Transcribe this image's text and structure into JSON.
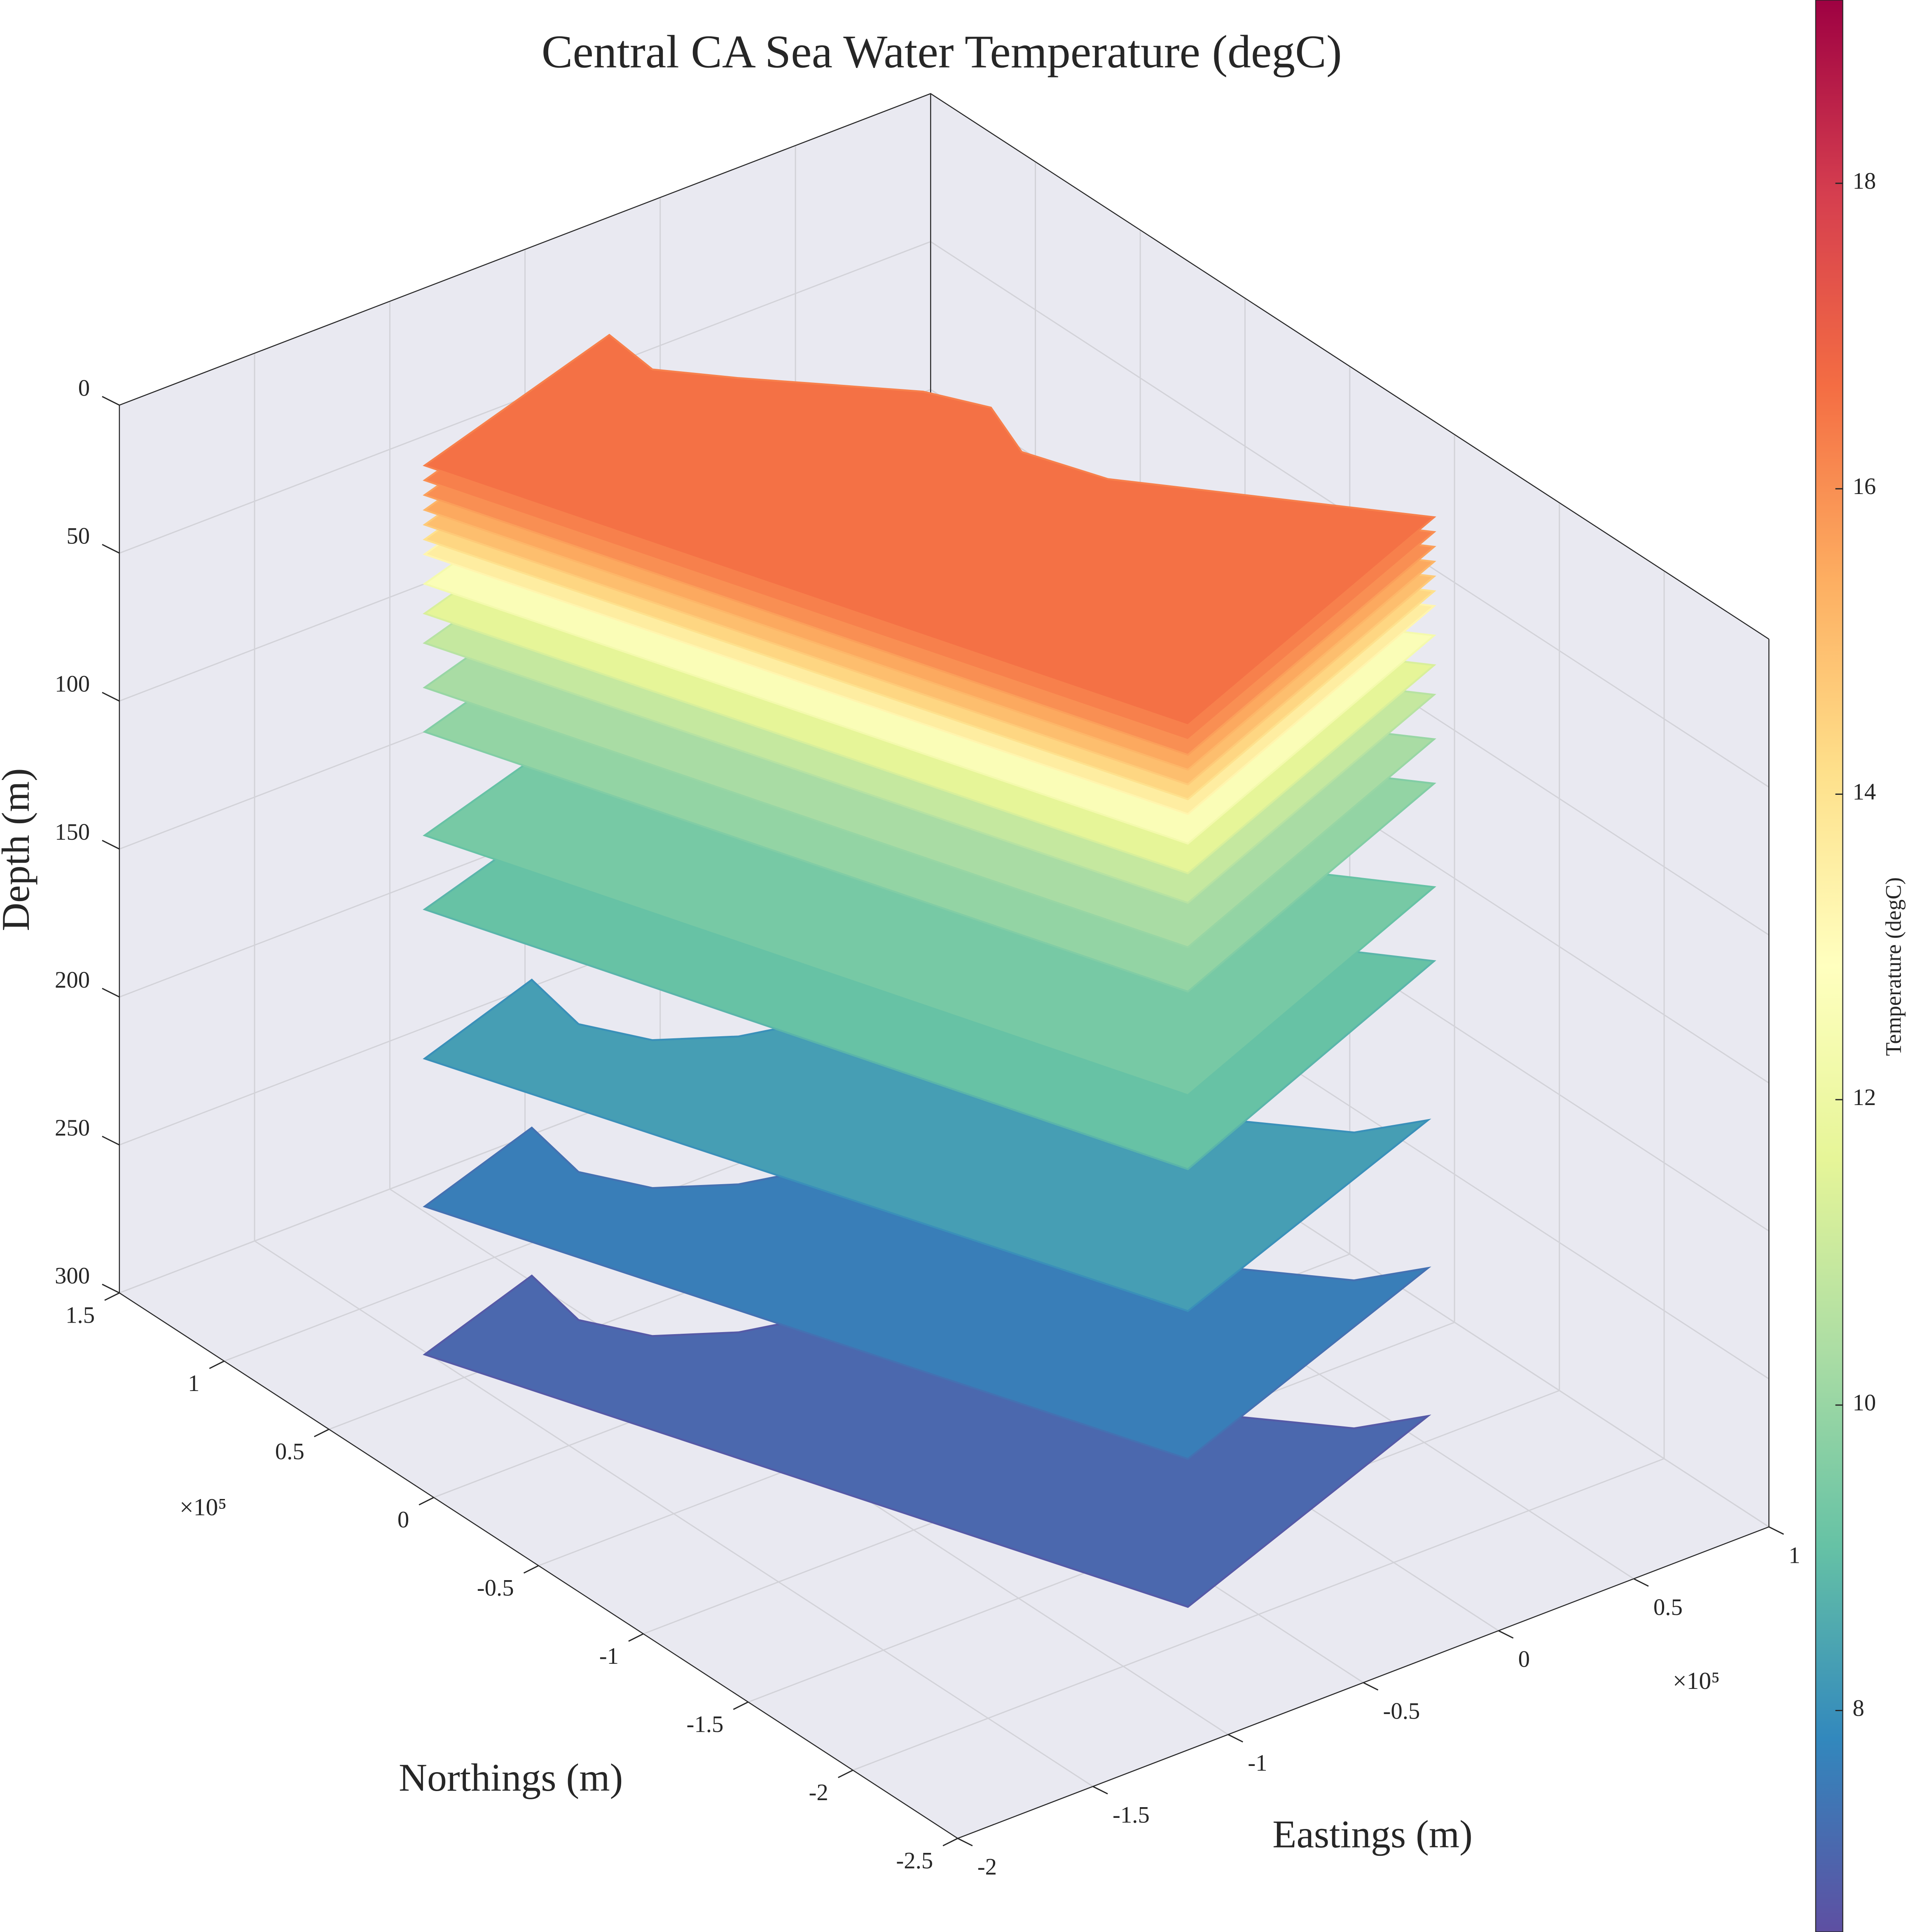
{
  "chart_data": {
    "type": "slices",
    "title": "Central CA Sea Water Temperature (degC)",
    "zlabel": "Depth (m)",
    "xlabel": "Northings (m)",
    "ylabel": "Eastings (m)",
    "colorbar_label": "Temperature (degC)",
    "x_exponent": "×10⁵",
    "y_exponent": "×10⁵",
    "depths": [
      0,
      5,
      10,
      15,
      20,
      25,
      30,
      40,
      50,
      60,
      75,
      90,
      125,
      150,
      200,
      250,
      300
    ],
    "values": [
      16.6,
      16.3,
      16,
      15.5,
      15,
      14.4,
      13.6,
      12.6,
      11.6,
      10.9,
      10.3,
      9.9,
      9.4,
      9.1,
      8.3,
      7.6,
      7.1
    ],
    "xlim": [
      -2.5,
      1.5
    ],
    "xticks": [
      -2.5,
      -2,
      -1.5,
      -1,
      -0.5,
      0,
      0.5,
      1,
      1.5
    ],
    "ylim": [
      -2,
      1
    ],
    "yticks": [
      -2,
      -1.5,
      -1,
      -0.5,
      0,
      0.5,
      1
    ],
    "zlim": [
      0,
      300
    ],
    "zticks": [
      0,
      50,
      100,
      150,
      200,
      250,
      300
    ],
    "z_reversed": true,
    "clim": [
      6.55,
      19.2
    ],
    "cticks": [
      8,
      10,
      12,
      14,
      16,
      18
    ],
    "colormap": [
      "#5e4fa2",
      "#3288bd",
      "#66c2a5",
      "#abdda4",
      "#e6f598",
      "#ffffbf",
      "#fee08b",
      "#fdae61",
      "#f46d43",
      "#d53e4f",
      "#9e0142"
    ],
    "grid": true
  }
}
